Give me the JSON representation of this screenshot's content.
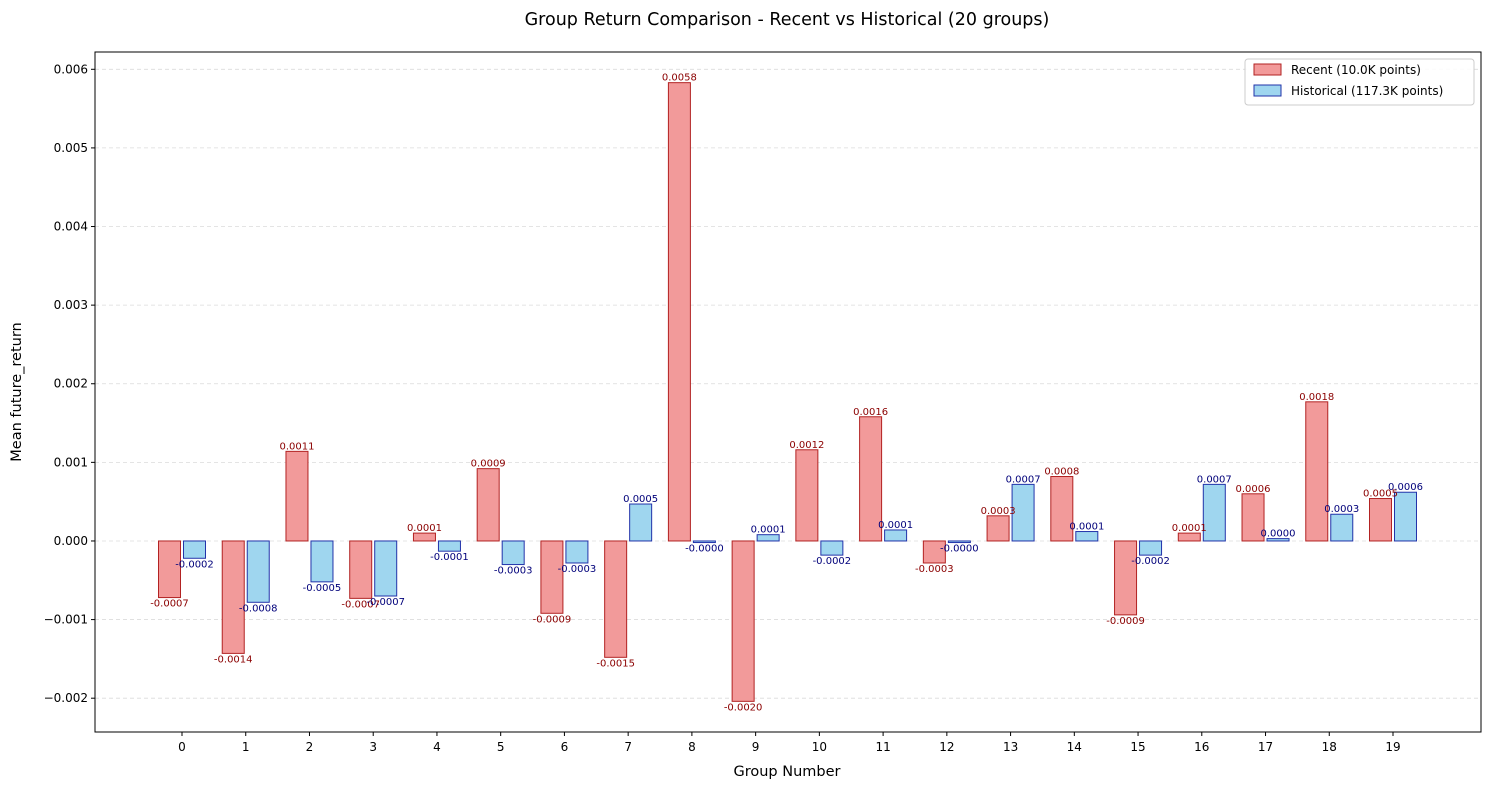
{
  "chart_data": {
    "type": "bar",
    "title": "Group Return Comparison - Recent vs Historical (20 groups)",
    "xlabel": "Group Number",
    "ylabel": "Mean future_return",
    "categories": [
      "0",
      "1",
      "2",
      "3",
      "4",
      "5",
      "6",
      "7",
      "8",
      "9",
      "10",
      "11",
      "12",
      "13",
      "14",
      "15",
      "16",
      "17",
      "18",
      "19"
    ],
    "ylim": [
      -0.00243,
      0.00622
    ],
    "yticks": [
      -0.002,
      -0.001,
      0.0,
      0.001,
      0.002,
      0.003,
      0.004,
      0.005,
      0.006
    ],
    "ytick_labels": [
      "−0.002",
      "−0.001",
      "0.000",
      "0.001",
      "0.002",
      "0.003",
      "0.004",
      "0.005",
      "0.006"
    ],
    "grid": "y-dashed",
    "legend_position": "top-right",
    "series": [
      {
        "name": "Recent (10.0K points)",
        "color": "#f29a9a",
        "edge_color": "#b22222",
        "label_color": "#8b0000",
        "values": [
          -0.00072,
          -0.00143,
          0.00114,
          -0.00073,
          0.0001,
          0.00092,
          -0.00092,
          -0.00148,
          0.00583,
          -0.00204,
          0.00116,
          0.00158,
          -0.00028,
          0.00032,
          0.00082,
          -0.00094,
          0.0001,
          0.0006,
          0.00177,
          0.00054
        ],
        "labels": [
          "-0.0007",
          "-0.0014",
          "0.0011",
          "-0.0007",
          "0.0001",
          "0.0009",
          "-0.0009",
          "-0.0015",
          "0.0058",
          "-0.0020",
          "0.0012",
          "0.0016",
          "-0.0003",
          "0.0003",
          "0.0008",
          "-0.0009",
          "0.0001",
          "0.0006",
          "0.0018",
          "0.0005"
        ]
      },
      {
        "name": "Historical (117.3K points)",
        "color": "#9fd6ef",
        "edge_color": "#2233aa",
        "label_color": "#00007a",
        "values": [
          -0.00022,
          -0.00078,
          -0.00052,
          -0.0007,
          -0.00013,
          -0.0003,
          -0.00028,
          0.00047,
          -2e-05,
          8e-05,
          -0.00018,
          0.00014,
          -2e-05,
          0.00072,
          0.00012,
          -0.00018,
          0.00072,
          3e-05,
          0.00034,
          0.00062
        ],
        "labels": [
          "-0.0002",
          "-0.0008",
          "-0.0005",
          "-0.0007",
          "-0.0001",
          "-0.0003",
          "-0.0003",
          "0.0005",
          "-0.0000",
          "0.0001",
          "-0.0002",
          "0.0001",
          "-0.0000",
          "0.0007",
          "0.0001",
          "-0.0002",
          "0.0007",
          "0.0000",
          "0.0003",
          "0.0006"
        ]
      }
    ]
  }
}
